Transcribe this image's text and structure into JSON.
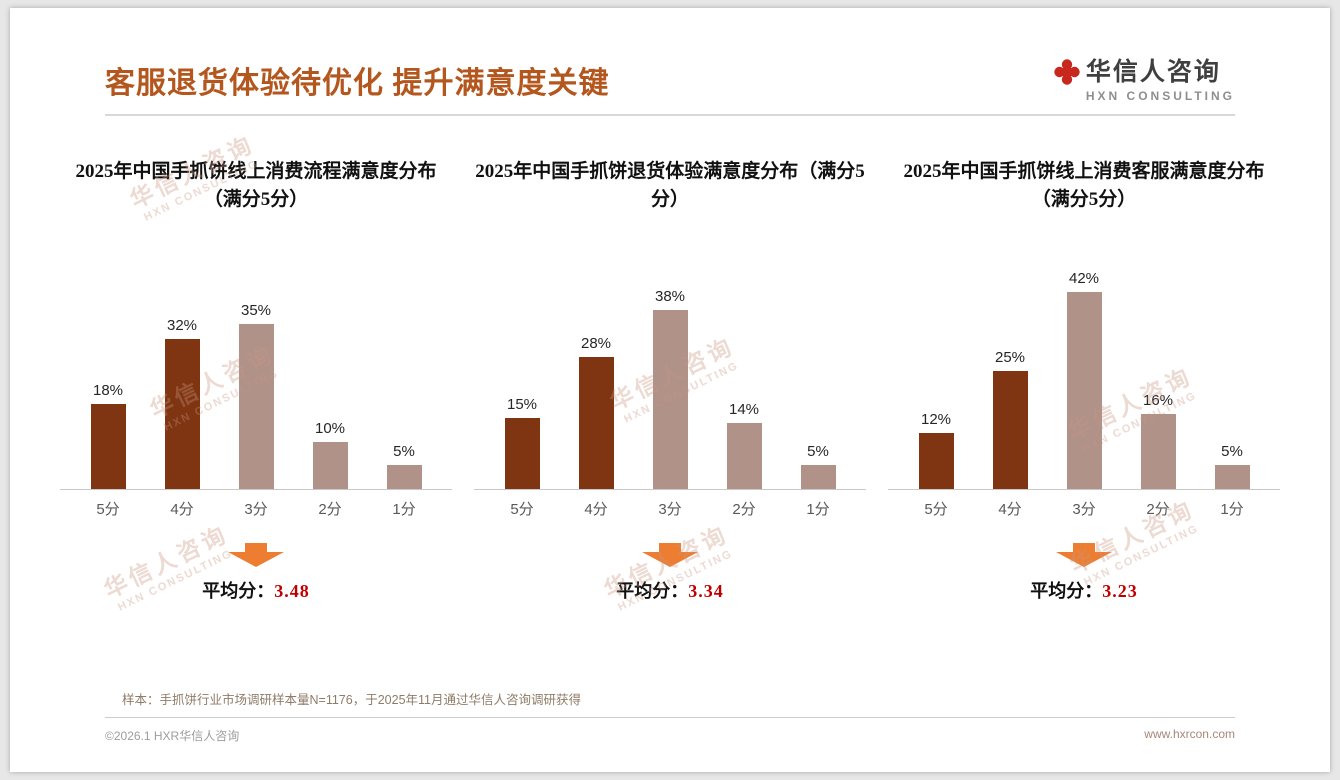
{
  "slide": {
    "title": "客服退货体验待优化 提升满意度关键",
    "logo": {
      "name": "华信人咨询",
      "subtitle": "HXN CONSULTING"
    },
    "watermark_name": "华信人咨询",
    "watermark_sub": "HXN CONSULTING",
    "footnote": "样本：手抓饼行业市场调研样本量N=1176，于2025年11月通过华信人咨询调研获得",
    "footer_left": "©2026.1 HXR华信人咨询",
    "footer_right": "www.hxrcon.com"
  },
  "colors": {
    "title": "#B4571E",
    "bar_dark": "#7F3511",
    "bar_light": "#B09289",
    "arrow": "#ED7D31",
    "average": "#C00000",
    "logo_red": "#C8271D",
    "watermark": "rgba(201,150,130,0.35)"
  },
  "chart_data": [
    {
      "type": "bar",
      "title": "2025年中国手抓饼线上消费流程满意度分布（满分5分）",
      "categories": [
        "5分",
        "4分",
        "3分",
        "2分",
        "1分"
      ],
      "values": [
        18,
        32,
        35,
        10,
        5
      ],
      "unit": "%",
      "ylim": [
        0,
        45
      ],
      "grid": false,
      "legend": "none",
      "bar_colors": [
        "dark",
        "dark",
        "light",
        "light",
        "light"
      ],
      "average_label": "平均分：",
      "average_value": "3.48"
    },
    {
      "type": "bar",
      "title": "2025年中国手抓饼退货体验满意度分布（满分5分）",
      "categories": [
        "5分",
        "4分",
        "3分",
        "2分",
        "1分"
      ],
      "values": [
        15,
        28,
        38,
        14,
        5
      ],
      "unit": "%",
      "ylim": [
        0,
        45
      ],
      "grid": false,
      "legend": "none",
      "bar_colors": [
        "dark",
        "dark",
        "light",
        "light",
        "light"
      ],
      "average_label": "平均分：",
      "average_value": "3.34"
    },
    {
      "type": "bar",
      "title": "2025年中国手抓饼线上消费客服满意度分布（满分5分）",
      "categories": [
        "5分",
        "4分",
        "3分",
        "2分",
        "1分"
      ],
      "values": [
        12,
        25,
        42,
        16,
        5
      ],
      "unit": "%",
      "ylim": [
        0,
        45
      ],
      "grid": false,
      "legend": "none",
      "bar_colors": [
        "dark",
        "dark",
        "light",
        "light",
        "light"
      ],
      "average_label": "平均分：",
      "average_value": "3.23"
    }
  ]
}
